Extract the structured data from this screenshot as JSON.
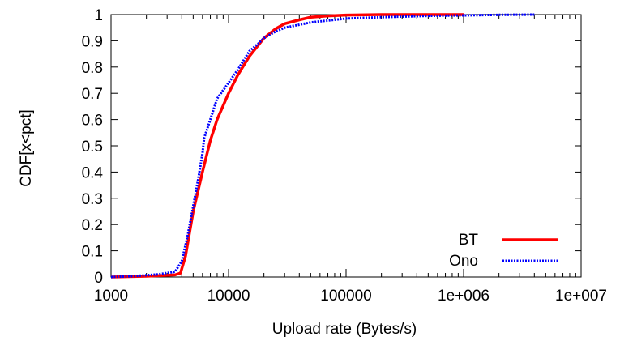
{
  "chart_data": {
    "type": "line",
    "title": "",
    "xlabel": "Upload rate (Bytes/s)",
    "ylabel": "CDF[x<pct]",
    "x_scale": "log",
    "xlim": [
      1000,
      10000000
    ],
    "ylim": [
      0,
      1
    ],
    "grid": false,
    "legend_position": "bottom-right",
    "x_ticks": [
      1000,
      10000,
      100000,
      1000000,
      10000000
    ],
    "x_tick_labels": [
      "1000",
      "10000",
      "100000",
      "1e+006",
      "1e+007"
    ],
    "y_ticks": [
      0,
      0.1,
      0.2,
      0.3,
      0.4,
      0.5,
      0.6,
      0.7,
      0.8,
      0.9,
      1
    ],
    "y_tick_labels": [
      "0",
      "0.1",
      "0.2",
      "0.3",
      "0.4",
      "0.5",
      "0.6",
      "0.7",
      "0.8",
      "0.9",
      "1"
    ],
    "series": [
      {
        "name": "BT",
        "color": "#ff0000",
        "style": "solid",
        "x": [
          1000,
          2000,
          3500,
          3900,
          4300,
          5000,
          6000,
          7000,
          8000,
          10000,
          12000,
          15000,
          20000,
          25000,
          30000,
          40000,
          50000,
          70000,
          100000,
          200000,
          500000,
          1000000
        ],
        "y": [
          0.0,
          0.003,
          0.008,
          0.015,
          0.08,
          0.25,
          0.4,
          0.52,
          0.6,
          0.7,
          0.77,
          0.84,
          0.91,
          0.945,
          0.965,
          0.98,
          0.99,
          0.995,
          0.998,
          1.0,
          1.0,
          1.0
        ]
      },
      {
        "name": "Ono",
        "color": "#0000ff",
        "style": "dotted",
        "x": [
          1000,
          1500,
          2500,
          3500,
          4000,
          4500,
          5000,
          5500,
          6000,
          6200,
          7000,
          8000,
          10000,
          12000,
          15000,
          18000,
          20000,
          25000,
          30000,
          50000,
          100000,
          200000,
          500000,
          1000000,
          2000000,
          4000000
        ],
        "y": [
          0.0,
          0.003,
          0.01,
          0.02,
          0.06,
          0.16,
          0.27,
          0.37,
          0.47,
          0.53,
          0.6,
          0.68,
          0.74,
          0.79,
          0.86,
          0.89,
          0.91,
          0.935,
          0.95,
          0.97,
          0.985,
          0.99,
          0.995,
          0.997,
          0.999,
          1.0
        ]
      }
    ]
  }
}
